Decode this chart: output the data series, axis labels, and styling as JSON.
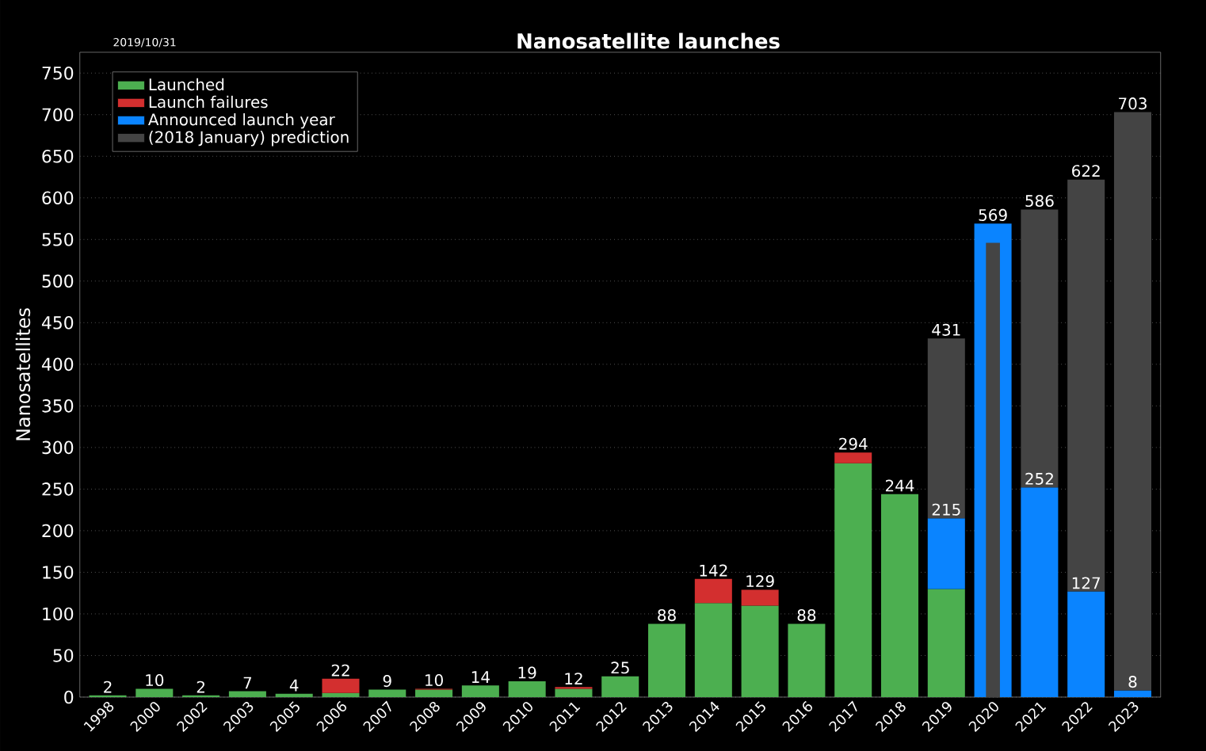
{
  "chart_data": [
    {
      "type": "bar",
      "title": "Nanosatellite launches",
      "ylabel": "Nanosatellites",
      "annotations": [
        "2019/10/31",
        {
          "text": "215",
          "x": "2019",
          "y": 215
        },
        {
          "text": "252",
          "x": "2021",
          "y": 252
        },
        {
          "text": "127",
          "x": "2022",
          "y": 127
        },
        {
          "text": "8",
          "x": "2023",
          "y": 8
        }
      ],
      "categories": [
        "1998",
        "2000",
        "2002",
        "2003",
        "2005",
        "2006",
        "2007",
        "2008",
        "2009",
        "2010",
        "2011",
        "2012",
        "2013",
        "2014",
        "2015",
        "2016",
        "2017",
        "2018",
        "2019",
        "2020",
        "2021",
        "2022",
        "2023"
      ],
      "stacked": true,
      "series": [
        {
          "name": "Launched",
          "color": "#4caf50",
          "values": [
            2,
            10,
            2,
            7,
            4,
            5,
            9,
            9,
            14,
            19,
            10,
            25,
            88,
            113,
            110,
            88,
            281,
            244,
            130,
            null,
            null,
            null,
            null
          ]
        },
        {
          "name": "Launch failures",
          "color": "#d32f2f",
          "values": [
            null,
            null,
            null,
            null,
            null,
            17,
            null,
            1,
            null,
            null,
            2,
            null,
            null,
            29,
            19,
            null,
            13,
            null,
            null,
            null,
            null,
            null,
            null
          ]
        },
        {
          "name": "Announced launch year",
          "color": "#0a84ff",
          "values": [
            null,
            null,
            null,
            null,
            null,
            null,
            null,
            null,
            null,
            null,
            null,
            null,
            null,
            null,
            null,
            null,
            null,
            null,
            85,
            569,
            252,
            127,
            8
          ]
        },
        {
          "name": "(2018 January) prediction",
          "color": "#444444",
          "values": [
            null,
            null,
            null,
            null,
            null,
            null,
            null,
            null,
            null,
            null,
            null,
            null,
            null,
            null,
            null,
            null,
            null,
            null,
            216,
            null,
            334,
            495,
            695
          ]
        }
      ],
      "totals": [
        "2",
        "10",
        "2",
        "7",
        "4",
        "22",
        "9",
        "10",
        "14",
        "19",
        "12",
        "25",
        "88",
        "142",
        "129",
        "88",
        "294",
        "244",
        "431",
        "569",
        "586",
        "622",
        "703"
      ],
      "ylim": [
        0,
        775
      ],
      "yticks": [
        0,
        50,
        100,
        150,
        200,
        250,
        300,
        350,
        400,
        450,
        500,
        550,
        600,
        650,
        700,
        750
      ],
      "grid": "y",
      "legend": "top left"
    },
    {
      "type": "bar",
      "categories": [
        "1998",
        "2000",
        "2002",
        "2003",
        "2005",
        "2006",
        "2007",
        "2008",
        "2009",
        "2010",
        "2011",
        "2012",
        "2013",
        "2014",
        "2015",
        "2016",
        "2017",
        "2018",
        "2019",
        "2020",
        "2021",
        "2022",
        "2023"
      ],
      "series": [
        {
          "color": "#444444",
          "values": [
            null,
            null,
            null,
            null,
            null,
            null,
            null,
            null,
            null,
            null,
            null,
            null,
            null,
            null,
            null,
            null,
            null,
            null,
            null,
            546,
            null,
            null,
            null
          ]
        }
      ],
      "ylim": [
        0,
        775
      ],
      "tick_labels": false
    }
  ]
}
